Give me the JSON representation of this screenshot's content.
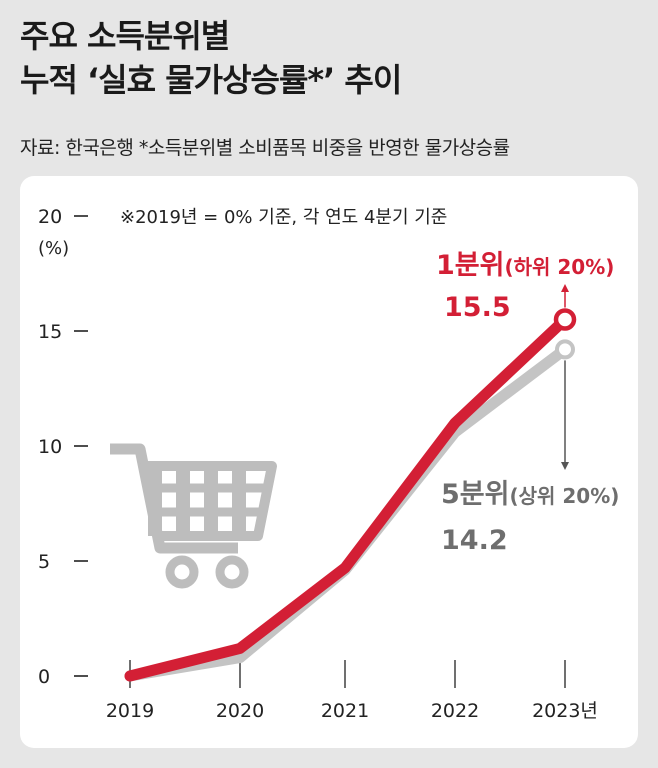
{
  "title_line1": "주요 소득분위별",
  "title_line2": "누적 ‘실효 물가상승률*’ 추이",
  "source": "자료: 한국은행 *소득분위별 소비품목 비중을 반영한 물가상승률",
  "axis_note": "※2019년 = 0% 기준, 각 연도 4분기 기준",
  "y_unit": "(%)",
  "colors": {
    "red": "#d31f35",
    "gray": "#c4c4c4"
  },
  "icon": "shopping-cart-icon",
  "chart_data": {
    "type": "line",
    "x": [
      "2019",
      "2020",
      "2021",
      "2022",
      "2023년"
    ],
    "ylim": [
      0,
      20
    ],
    "yticks": [
      "0",
      "5",
      "10",
      "15",
      "20"
    ],
    "series": [
      {
        "name": "1분위",
        "name_detail": "(하위 20%)",
        "values": [
          0,
          1.2,
          4.7,
          11.0,
          15.5
        ],
        "end_label": "15.5",
        "color": "#d31f35"
      },
      {
        "name": "5분위",
        "name_detail": "(상위 20%)",
        "values": [
          0,
          0.8,
          4.6,
          10.6,
          14.2
        ],
        "end_label": "14.2",
        "color": "#c4c4c4"
      }
    ]
  }
}
